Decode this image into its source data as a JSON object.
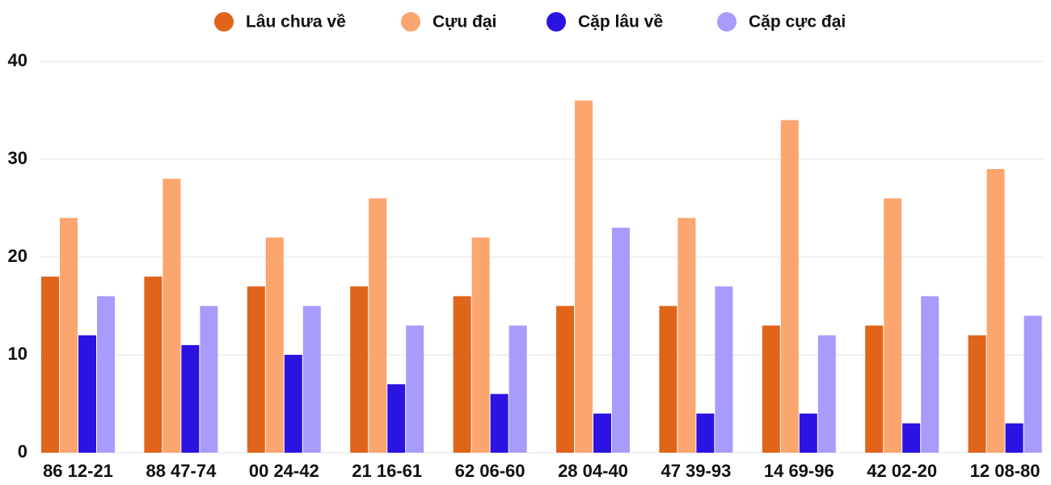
{
  "chart_data": {
    "type": "bar",
    "categories": [
      "86 12-21",
      "88 47-74",
      "00 24-42",
      "21 16-61",
      "62 06-60",
      "28 04-40",
      "47 39-93",
      "14 69-96",
      "42 02-20",
      "12 08-80"
    ],
    "series": [
      {
        "name": "Lâu chưa về",
        "color": "#e0641a",
        "values": [
          18,
          18,
          17,
          17,
          16,
          15,
          15,
          13,
          13,
          12
        ]
      },
      {
        "name": "Cựu đại",
        "color": "#fba56f",
        "values": [
          24,
          28,
          22,
          26,
          22,
          36,
          24,
          34,
          26,
          29
        ]
      },
      {
        "name": "Cặp lâu về",
        "color": "#2b13e2",
        "values": [
          12,
          11,
          10,
          7,
          6,
          4,
          4,
          4,
          3,
          3
        ]
      },
      {
        "name": "Cặp cực đại",
        "color": "#a79cfb",
        "values": [
          16,
          15,
          15,
          13,
          13,
          23,
          17,
          12,
          16,
          14
        ]
      }
    ],
    "ylim": [
      0,
      40
    ],
    "yticks": [
      0,
      10,
      20,
      30,
      40
    ],
    "grid": true,
    "legend": "top"
  }
}
